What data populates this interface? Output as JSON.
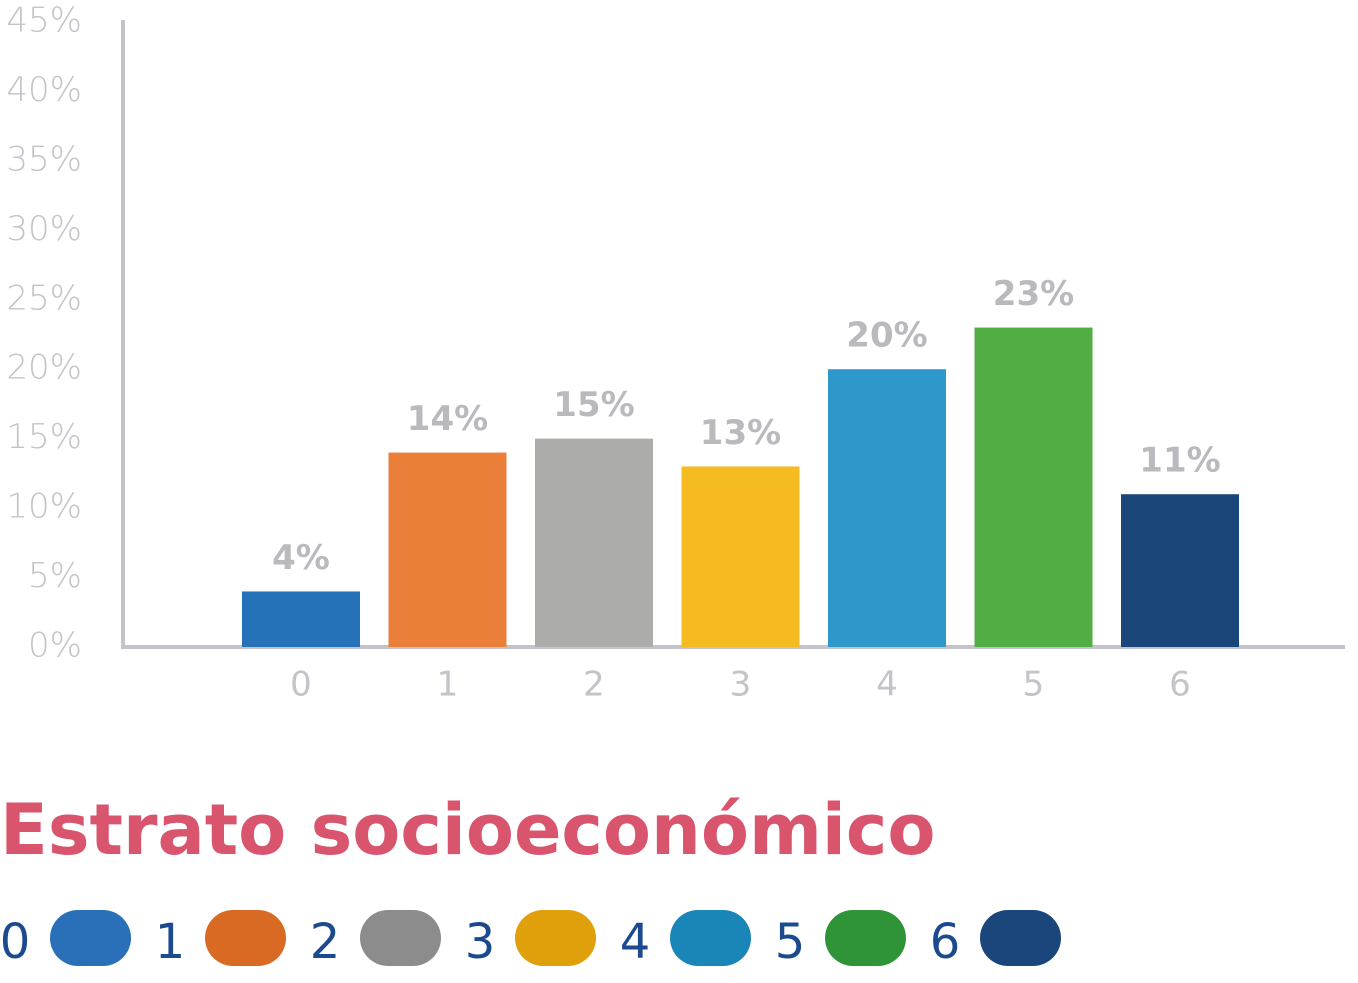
{
  "chart_data": {
    "type": "bar",
    "title": "Estrato socioeconómico",
    "categories": [
      "0",
      "1",
      "2",
      "3",
      "4",
      "5",
      "6"
    ],
    "values": [
      4,
      14,
      15,
      13,
      20,
      23,
      11
    ],
    "value_labels": [
      "4%",
      "14%",
      "15%",
      "13%",
      "20%",
      "23%",
      "11%"
    ],
    "colors": [
      "#2672b8",
      "#ea7f3a",
      "#acacab",
      "#f5bb21",
      "#2f98cb",
      "#52ad45",
      "#1a4679"
    ],
    "legend_colors": [
      "#2a70b8",
      "#d96a24",
      "#8c8c8c",
      "#e0a00c",
      "#1a86b8",
      "#2f9438",
      "#1b467c"
    ],
    "ylim": [
      0,
      45
    ],
    "yticks": [
      {
        "value": 0,
        "label": "0%"
      },
      {
        "value": 5,
        "label": "5%"
      },
      {
        "value": 10,
        "label": "10%"
      },
      {
        "value": 15,
        "label": "15%"
      },
      {
        "value": 20,
        "label": "20%"
      },
      {
        "value": 25,
        "label": "25%"
      },
      {
        "value": 30,
        "label": "30%"
      },
      {
        "value": 35,
        "label": "35%"
      },
      {
        "value": 40,
        "label": "40%"
      },
      {
        "value": 45,
        "label": "45%"
      }
    ],
    "grid": false
  }
}
